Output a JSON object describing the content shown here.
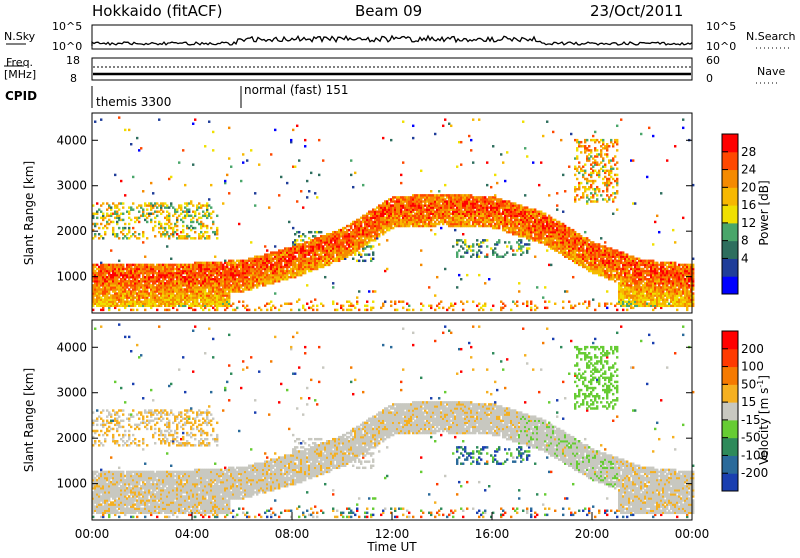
{
  "header": {
    "station": "Hokkaido (fitACF)",
    "beam": "Beam 09",
    "date": "23/Oct/2011"
  },
  "top_panels": {
    "nsky_label": "N.Sky",
    "nsearch_label": "N.Search",
    "nsky_ticks": [
      "10^5",
      "10^0"
    ],
    "freq_label_1": "Freq.",
    "freq_label_2": "[MHz]",
    "freq_ticks": [
      "18",
      "8"
    ],
    "nave_label": "Nave",
    "nave_ticks": [
      "60",
      "0"
    ],
    "cpid_label": "CPID",
    "cpid_segments": [
      {
        "label": "themis 3300",
        "start_hour": 0
      },
      {
        "label": "normal (fast) 151",
        "start_hour": 6
      }
    ]
  },
  "chart_data": [
    {
      "type": "heatmap",
      "panel": "power",
      "ylabel": "Slant Range [km]",
      "ylim": [
        200,
        4600
      ],
      "yticks": [
        1000,
        2000,
        3000,
        4000
      ],
      "xlim": [
        0,
        24
      ],
      "colorbar": {
        "label": "Power [dB]",
        "ticks": [
          "28",
          "24",
          "20",
          "16",
          "12",
          "8",
          "4"
        ],
        "range": [
          0,
          32
        ],
        "colors": [
          "#0000ff",
          "#1f3d99",
          "#2e6e5e",
          "#49a66a",
          "#f0e000",
          "#f7b800",
          "#f58a00",
          "#ff4800",
          "#ff0000"
        ]
      },
      "features": [
        {
          "band": "main echo",
          "start_hour": 0,
          "end_hour": 24,
          "range_km_at_hours": [
            [
              0,
              1000
            ],
            [
              3,
              1000
            ],
            [
              6,
              1100
            ],
            [
              8,
              1400
            ],
            [
              10,
              1800
            ],
            [
              12,
              2500
            ],
            [
              14,
              2550
            ],
            [
              16,
              2500
            ],
            [
              18,
              2150
            ],
            [
              20,
              1500
            ],
            [
              22,
              1100
            ],
            [
              24,
              1000
            ]
          ]
        }
      ]
    },
    {
      "type": "heatmap",
      "panel": "velocity",
      "ylabel": "Slant Range [km]",
      "ylim": [
        200,
        4600
      ],
      "yticks": [
        1000,
        2000,
        3000,
        4000
      ],
      "xlim": [
        0,
        24
      ],
      "xlabel": "Time UT",
      "xticks": [
        "00:00",
        "04:00",
        "08:00",
        "12:00",
        "16:00",
        "20:00",
        "00:00"
      ],
      "colorbar": {
        "label": "Velocity [m s",
        "label_sup": "-1",
        "ticks": [
          "200",
          "100",
          "50",
          "15",
          "-15",
          "-50",
          "-100",
          "-200"
        ],
        "colors": [
          "#1a3fb0",
          "#2a6a9a",
          "#2e8a5a",
          "#66cc33",
          "#c8c8c0",
          "#f5b020",
          "#f57a00",
          "#ff3a00",
          "#ff0000"
        ]
      }
    }
  ]
}
